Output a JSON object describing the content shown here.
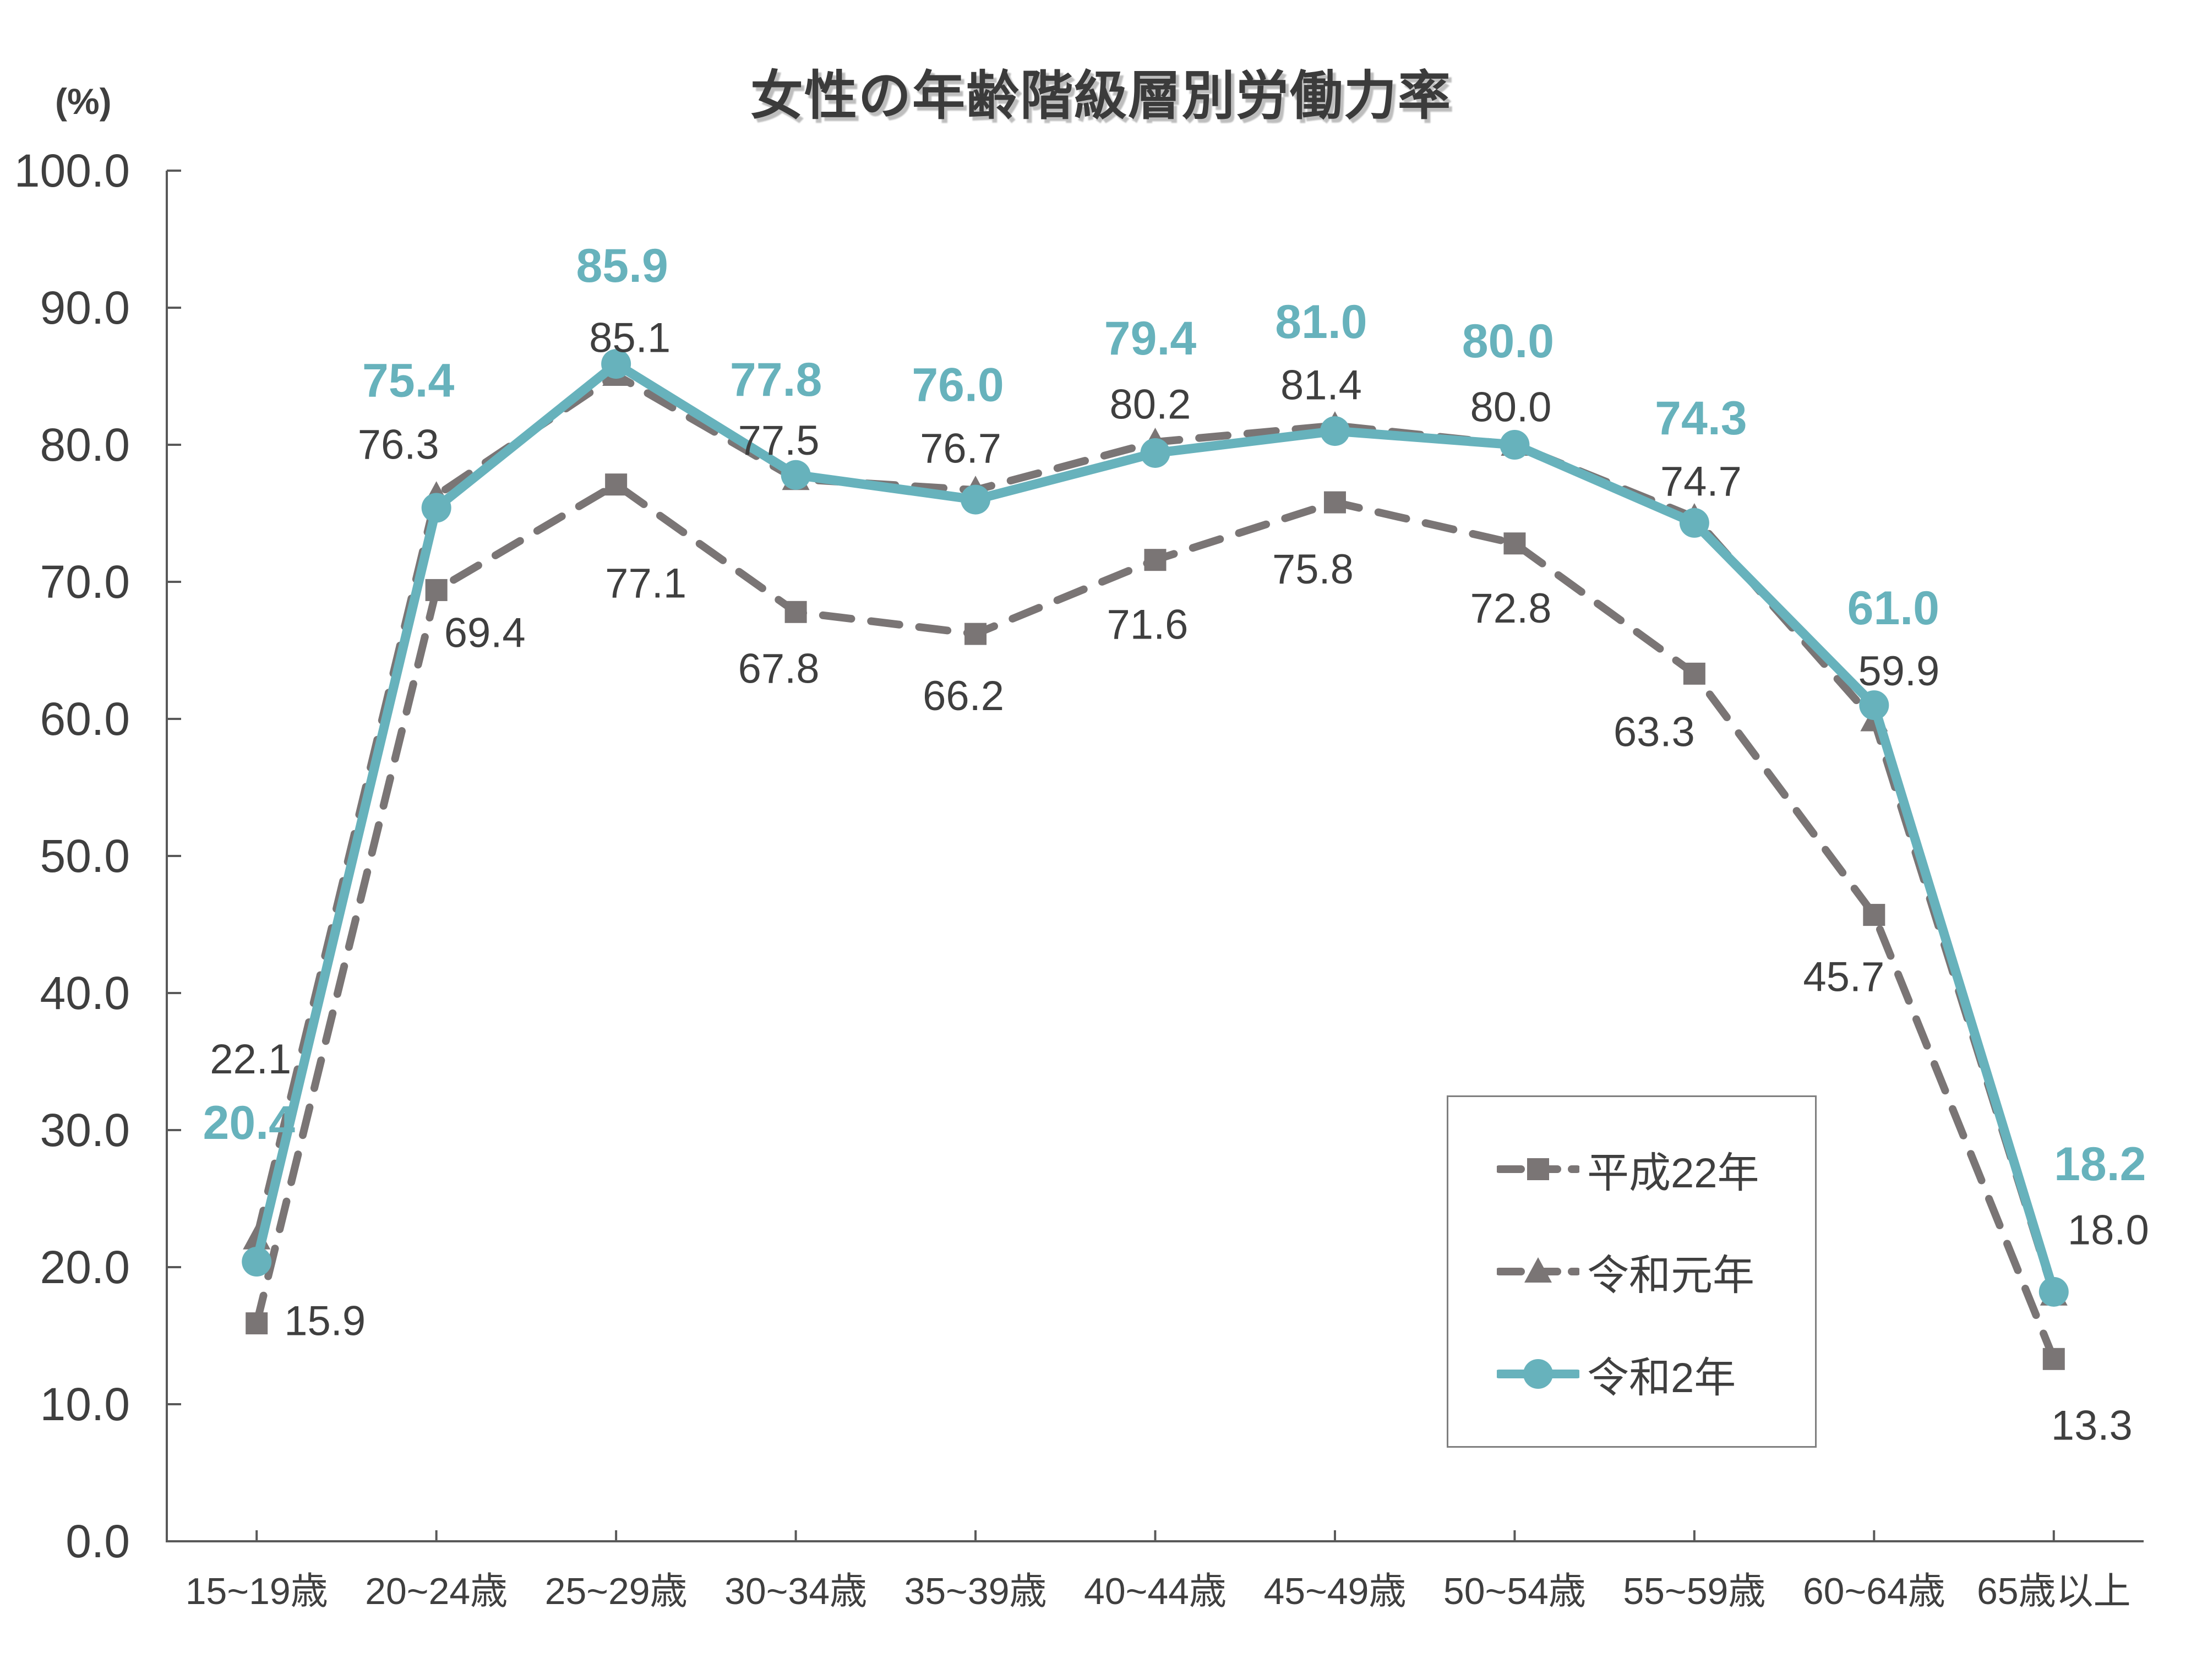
{
  "chart_data": {
    "type": "line",
    "title": "女性の年齢階級層別労働力率",
    "y_axis_unit_label": "(%)",
    "categories": [
      "15~19歳",
      "20~24歳",
      "25~29歳",
      "30~34歳",
      "35~39歳",
      "40~44歳",
      "45~49歳",
      "50~54歳",
      "55~59歳",
      "60~64歳",
      "65歳以上"
    ],
    "series": [
      {
        "name": "平成22年",
        "marker": "square",
        "line_style": "dashed",
        "color": "#7a7575",
        "values": [
          15.9,
          69.4,
          77.1,
          67.8,
          66.2,
          71.6,
          75.8,
          72.8,
          63.3,
          45.7,
          13.3
        ]
      },
      {
        "name": "令和元年",
        "marker": "triangle",
        "line_style": "dashed",
        "color": "#7a7575",
        "values": [
          22.1,
          76.3,
          85.1,
          77.5,
          76.7,
          80.2,
          81.4,
          80.0,
          74.7,
          59.9,
          18.0
        ]
      },
      {
        "name": "令和2年",
        "marker": "circle",
        "line_style": "solid",
        "color": "#67b2bc",
        "values": [
          20.4,
          75.4,
          85.9,
          77.8,
          76.0,
          79.4,
          81.0,
          80.0,
          74.3,
          61.0,
          18.2
        ]
      }
    ],
    "ylim": [
      0,
      100
    ],
    "y_tick_step": 10,
    "y_tick_format": "one-decimal",
    "xlabel": "",
    "ylabel": "(%)",
    "grid": false,
    "legend_position": "inside-right-middle",
    "colors": {
      "accent_teal": "#67b2bc",
      "series_gray": "#7a7575",
      "text_dark": "#3f3f3f",
      "axis": "#595959",
      "legend_border": "#7f7f7f"
    }
  }
}
